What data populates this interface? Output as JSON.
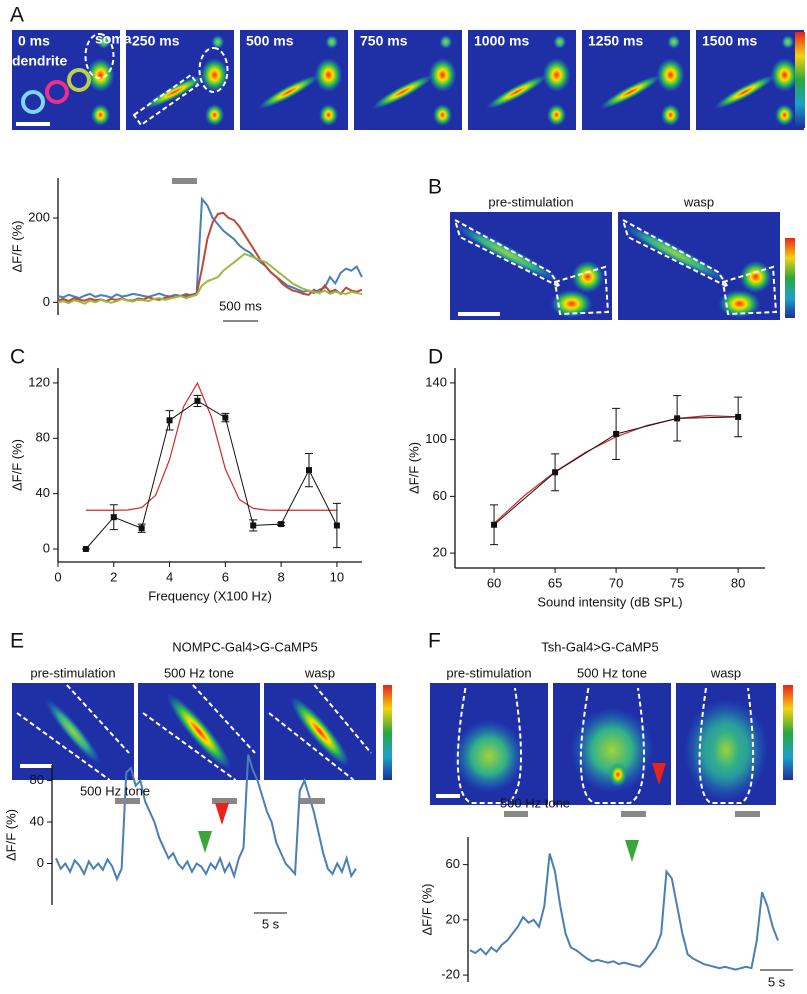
{
  "figure": {
    "panel_labels": [
      "A",
      "B",
      "C",
      "D",
      "E",
      "F"
    ],
    "a_times": [
      "0 ms",
      "250 ms",
      "500 ms",
      "750 ms",
      "1000 ms",
      "1250 ms",
      "1500 ms"
    ],
    "a_soma": "soma",
    "a_dendrite": "dendrite",
    "b_images": [
      "pre-stimulation",
      "wasp"
    ],
    "e_title": "NOMPC-Gal4>G-CaMP5",
    "e_images": [
      "pre-stimulation",
      "500 Hz tone",
      "wasp"
    ],
    "f_title": "Tsh-Gal4>G-CaMP5",
    "f_images": [
      "pre-stimulation",
      "500 Hz tone",
      "wasp"
    ]
  },
  "chart_data": [
    {
      "type": "line",
      "ylabel": "ΔF/F (%)",
      "ylim": [
        -30,
        295
      ],
      "yticks": [
        0,
        200
      ],
      "scale_label": "500 ms",
      "series": [
        {
          "color": "#4a7fb5",
          "values": [
            15,
            12,
            18,
            14,
            10,
            16,
            20,
            13,
            17,
            15,
            11,
            19,
            14,
            16,
            20,
            18,
            15,
            13,
            17,
            21,
            16,
            14,
            18,
            15,
            20,
            17,
            22,
            245,
            230,
            200,
            185,
            170,
            160,
            150,
            135,
            125,
            118,
            105,
            95,
            85,
            70,
            60,
            50,
            40,
            35,
            30,
            25,
            28,
            22,
            30,
            35,
            60,
            45,
            70,
            80,
            75,
            85,
            60
          ]
        },
        {
          "color": "#c0473a",
          "values": [
            5,
            8,
            3,
            10,
            6,
            4,
            9,
            5,
            7,
            3,
            8,
            6,
            10,
            5,
            4,
            9,
            7,
            12,
            8,
            6,
            10,
            14,
            12,
            16,
            15,
            18,
            20,
            80,
            150,
            190,
            210,
            212,
            200,
            195,
            180,
            160,
            140,
            120,
            100,
            85,
            70,
            60,
            45,
            35,
            28,
            25,
            20,
            18,
            30,
            22,
            40,
            25,
            30,
            20,
            35,
            28,
            25,
            30
          ]
        },
        {
          "color": "#9bbb3c",
          "values": [
            0,
            3,
            -2,
            5,
            2,
            -3,
            4,
            0,
            6,
            2,
            -1,
            3,
            8,
            4,
            2,
            6,
            5,
            3,
            8,
            10,
            6,
            9,
            12,
            15,
            10,
            14,
            18,
            40,
            50,
            55,
            60,
            75,
            85,
            95,
            105,
            115,
            110,
            105,
            100,
            95,
            85,
            75,
            65,
            55,
            45,
            38,
            32,
            28,
            25,
            22,
            28,
            20,
            25,
            22,
            20,
            25,
            22,
            20
          ]
        }
      ]
    },
    {
      "type": "scatter",
      "ylabel": "ΔF/F (%)",
      "xlabel": "Frequency (X100 Hz)",
      "xlim": [
        0,
        10.9
      ],
      "ylim": [
        -9.4,
        130.8
      ],
      "xticks": [
        0,
        2,
        4,
        6,
        8,
        10
      ],
      "yticks": [
        0,
        40,
        80,
        120
      ],
      "color": "#111111",
      "x": [
        1,
        2,
        3,
        4,
        5,
        6,
        7,
        8,
        9,
        10
      ],
      "values": [
        0,
        23,
        15,
        93,
        107,
        95,
        17,
        18,
        57,
        17
      ],
      "errors": [
        0,
        9,
        3,
        7,
        4,
        3,
        4,
        1,
        12,
        16
      ],
      "fit": {
        "color": "#d62728",
        "x": [
          1,
          1.5,
          2,
          2.5,
          3,
          3.5,
          4,
          4.5,
          5,
          5.5,
          6,
          6.5,
          7,
          7.5,
          8,
          8.5,
          9,
          9.5,
          10
        ],
        "values": [
          28,
          28,
          28,
          28.2,
          29.9,
          38.8,
          64.6,
          102.8,
          119.9,
          95.5,
          57.9,
          35.9,
          29.3,
          28.1,
          28,
          28,
          28,
          28,
          28
        ]
      }
    },
    {
      "type": "scatter",
      "ylabel": "ΔF/F (%)",
      "xlabel": "Sound intensity (dB SPL)",
      "xlim": [
        56.8,
        82.2
      ],
      "ylim": [
        9.5,
        150.5
      ],
      "xticks": [
        60,
        65,
        70,
        75,
        80
      ],
      "yticks": [
        20,
        60,
        100,
        140
      ],
      "color": "#111111",
      "x": [
        60,
        65,
        70,
        75,
        80
      ],
      "values": [
        40,
        77,
        104,
        115,
        116
      ],
      "errors": [
        14,
        13,
        18,
        16,
        14
      ],
      "fit": {
        "color": "#d62728",
        "x": [
          60,
          62.5,
          65,
          67.5,
          70,
          72.5,
          75,
          77.5,
          80
        ],
        "values": [
          41,
          60.6,
          77.4,
          91.1,
          102,
          109.9,
          114.9,
          116.9,
          116.1
        ]
      }
    },
    {
      "type": "line",
      "ylabel": "ΔF/F (%)",
      "ylim": [
        -40,
        95
      ],
      "yticks": [
        0,
        40,
        80
      ],
      "stimulus_label": "500 Hz tone",
      "scale_label": "5 s",
      "series": [
        {
          "color": "#4a7fb5",
          "values": [
            5,
            -5,
            0,
            -8,
            3,
            -2,
            -10,
            2,
            -5,
            0,
            -6,
            4,
            -3,
            -15,
            -5,
            88,
            92,
            75,
            80,
            60,
            50,
            40,
            25,
            15,
            5,
            10,
            0,
            -5,
            2,
            -8,
            0,
            -3,
            -10,
            0,
            -5,
            5,
            -8,
            0,
            -12,
            5,
            15,
            105,
            90,
            80,
            65,
            50,
            40,
            20,
            10,
            0,
            -5,
            -10,
            70,
            80,
            65,
            50,
            30,
            10,
            -5,
            -10,
            0,
            -8,
            5,
            -12,
            -5
          ]
        }
      ]
    },
    {
      "type": "line",
      "ylabel": "ΔF/F (%)",
      "ylim": [
        -25,
        80
      ],
      "yticks": [
        -20,
        20,
        60
      ],
      "stimulus_label": "500 Hz tone",
      "scale_label": "5 s",
      "series": [
        {
          "color": "#4a7fb5",
          "values": [
            -2,
            -4,
            -1,
            -5,
            0,
            -3,
            2,
            5,
            10,
            15,
            22,
            18,
            20,
            15,
            30,
            68,
            55,
            30,
            10,
            0,
            -2,
            -5,
            -8,
            -10,
            -9,
            -10,
            -11,
            -10,
            -12,
            -11,
            -12,
            -13,
            -14,
            -10,
            -5,
            0,
            10,
            55,
            50,
            30,
            10,
            -5,
            -8,
            -10,
            -12,
            -13,
            -14,
            -15,
            -14,
            -15,
            -16,
            -15,
            -14,
            -15,
            5,
            40,
            30,
            15,
            5
          ]
        }
      ]
    }
  ]
}
